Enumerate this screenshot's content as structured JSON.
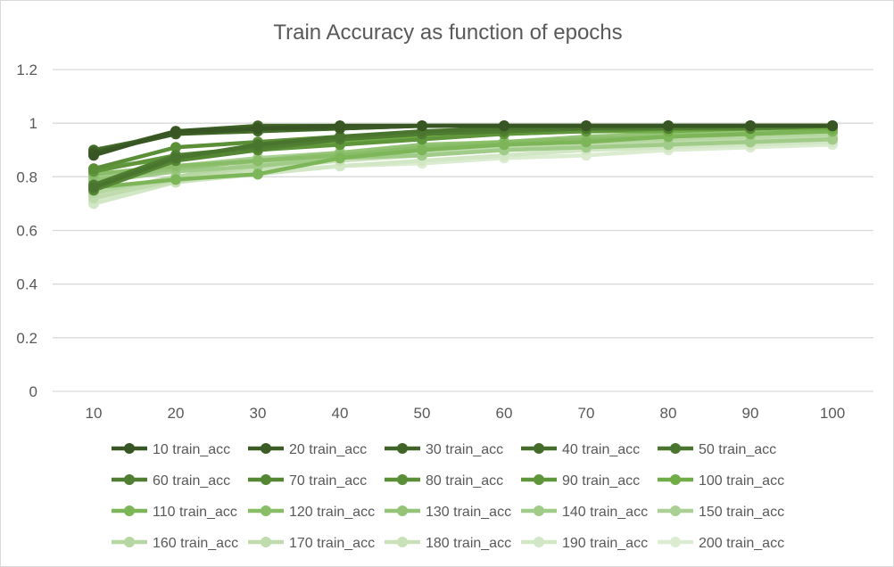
{
  "chart_data": {
    "type": "line",
    "title": "Train Accuracy as function of epochs",
    "xlabel": "",
    "ylabel": "",
    "categories": [
      "10",
      "20",
      "30",
      "40",
      "50",
      "60",
      "70",
      "80",
      "90",
      "100"
    ],
    "y_ticks": [
      "0",
      "0.2",
      "0.4",
      "0.6",
      "0.8",
      "1",
      "1.2"
    ],
    "ylim": [
      0,
      1.2
    ],
    "grid": true,
    "legend_position": "bottom",
    "series": [
      {
        "name": "10 train_acc",
        "color": "#375623",
        "values": [
          0.88,
          0.97,
          0.98,
          0.99,
          0.99,
          0.99,
          0.99,
          0.99,
          0.99,
          0.99
        ]
      },
      {
        "name": "20 train_acc",
        "color": "#3b5c25",
        "values": [
          0.89,
          0.96,
          0.98,
          0.98,
          0.99,
          0.99,
          0.99,
          0.99,
          0.99,
          0.99
        ]
      },
      {
        "name": "30 train_acc",
        "color": "#406428",
        "values": [
          0.89,
          0.97,
          0.99,
          0.99,
          0.99,
          0.99,
          0.99,
          0.99,
          0.99,
          0.99
        ]
      },
      {
        "name": "40 train_acc",
        "color": "#456c2b",
        "values": [
          0.9,
          0.96,
          0.97,
          0.98,
          0.99,
          0.99,
          0.99,
          0.99,
          0.99,
          0.99
        ]
      },
      {
        "name": "50 train_acc",
        "color": "#4a752e",
        "values": [
          0.76,
          0.87,
          0.92,
          0.95,
          0.97,
          0.98,
          0.98,
          0.99,
          0.99,
          0.99
        ]
      },
      {
        "name": "60 train_acc",
        "color": "#4f7d31",
        "values": [
          0.77,
          0.88,
          0.91,
          0.94,
          0.96,
          0.97,
          0.98,
          0.98,
          0.99,
          0.99
        ]
      },
      {
        "name": "70 train_acc",
        "color": "#558634",
        "values": [
          0.75,
          0.86,
          0.9,
          0.94,
          0.96,
          0.97,
          0.98,
          0.98,
          0.98,
          0.99
        ]
      },
      {
        "name": "80 train_acc",
        "color": "#5a8e37",
        "values": [
          0.83,
          0.91,
          0.93,
          0.95,
          0.96,
          0.97,
          0.98,
          0.98,
          0.99,
          0.99
        ]
      },
      {
        "name": "90 train_acc",
        "color": "#60963b",
        "values": [
          0.82,
          0.88,
          0.9,
          0.92,
          0.94,
          0.96,
          0.97,
          0.98,
          0.98,
          0.99
        ]
      },
      {
        "name": "100 train_acc",
        "color": "#70ad47",
        "values": [
          0.83,
          0.87,
          0.9,
          0.93,
          0.95,
          0.96,
          0.97,
          0.97,
          0.98,
          0.98
        ]
      },
      {
        "name": "110 train_acc",
        "color": "#7db658",
        "values": [
          0.76,
          0.79,
          0.81,
          0.87,
          0.9,
          0.92,
          0.93,
          0.95,
          0.96,
          0.97
        ]
      },
      {
        "name": "120 train_acc",
        "color": "#89bd68",
        "values": [
          0.81,
          0.84,
          0.86,
          0.88,
          0.91,
          0.93,
          0.94,
          0.95,
          0.96,
          0.97
        ]
      },
      {
        "name": "130 train_acc",
        "color": "#95c478",
        "values": [
          0.79,
          0.83,
          0.86,
          0.89,
          0.92,
          0.93,
          0.95,
          0.96,
          0.97,
          0.97
        ]
      },
      {
        "name": "140 train_acc",
        "color": "#a1cb88",
        "values": [
          0.78,
          0.82,
          0.84,
          0.87,
          0.88,
          0.9,
          0.91,
          0.92,
          0.93,
          0.94
        ]
      },
      {
        "name": "150 train_acc",
        "color": "#abd095",
        "values": [
          0.8,
          0.84,
          0.87,
          0.89,
          0.91,
          0.93,
          0.94,
          0.95,
          0.96,
          0.97
        ]
      },
      {
        "name": "160 train_acc",
        "color": "#b6d6a2",
        "values": [
          0.74,
          0.8,
          0.85,
          0.88,
          0.9,
          0.92,
          0.93,
          0.94,
          0.95,
          0.96
        ]
      },
      {
        "name": "170 train_acc",
        "color": "#c0dcae",
        "values": [
          0.72,
          0.79,
          0.84,
          0.87,
          0.89,
          0.91,
          0.92,
          0.93,
          0.94,
          0.95
        ]
      },
      {
        "name": "180 train_acc",
        "color": "#c9e1b9",
        "values": [
          0.73,
          0.78,
          0.83,
          0.86,
          0.88,
          0.9,
          0.91,
          0.92,
          0.93,
          0.94
        ]
      },
      {
        "name": "190 train_acc",
        "color": "#d2e7c5",
        "values": [
          0.7,
          0.78,
          0.81,
          0.84,
          0.86,
          0.88,
          0.9,
          0.91,
          0.92,
          0.93
        ]
      },
      {
        "name": "200 train_acc",
        "color": "#dbecd0",
        "values": [
          0.71,
          0.78,
          0.82,
          0.84,
          0.85,
          0.87,
          0.88,
          0.9,
          0.91,
          0.92
        ]
      }
    ]
  }
}
